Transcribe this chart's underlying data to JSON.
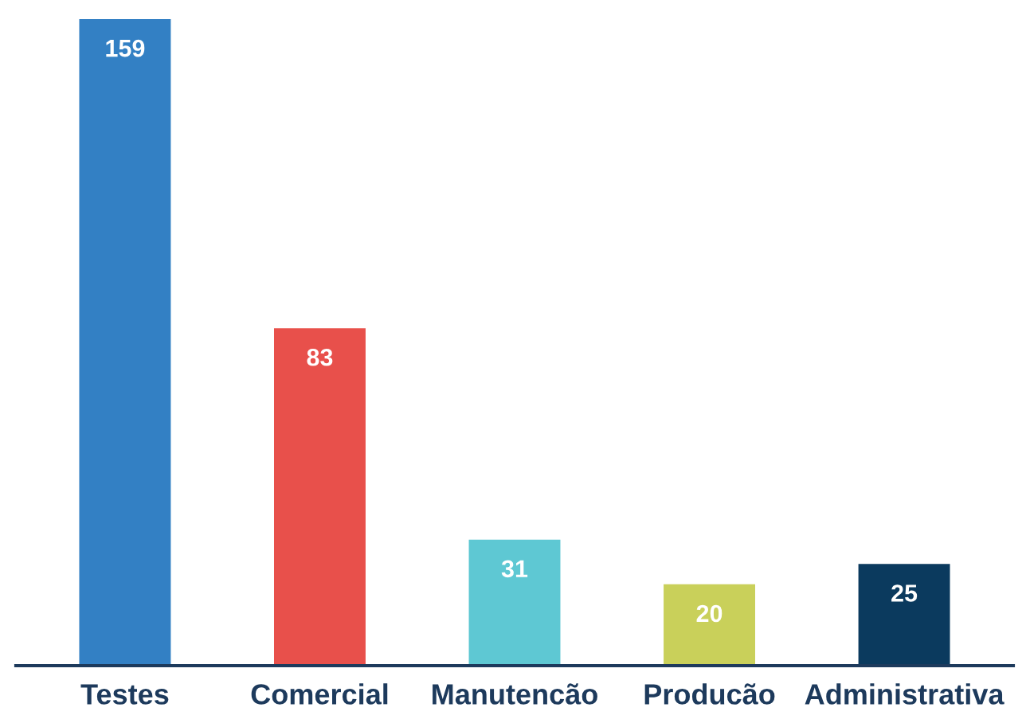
{
  "chart_data": {
    "type": "bar",
    "categories": [
      "Testes",
      "Comercial",
      "Manutencão",
      "Producão",
      "Administrativa"
    ],
    "values": [
      159,
      83,
      31,
      20,
      25
    ],
    "colors": [
      "#3380c4",
      "#e8504b",
      "#5ec8d3",
      "#c9d05a",
      "#0b3a5e"
    ],
    "data_labels": true,
    "grid": false,
    "legend": false
  }
}
